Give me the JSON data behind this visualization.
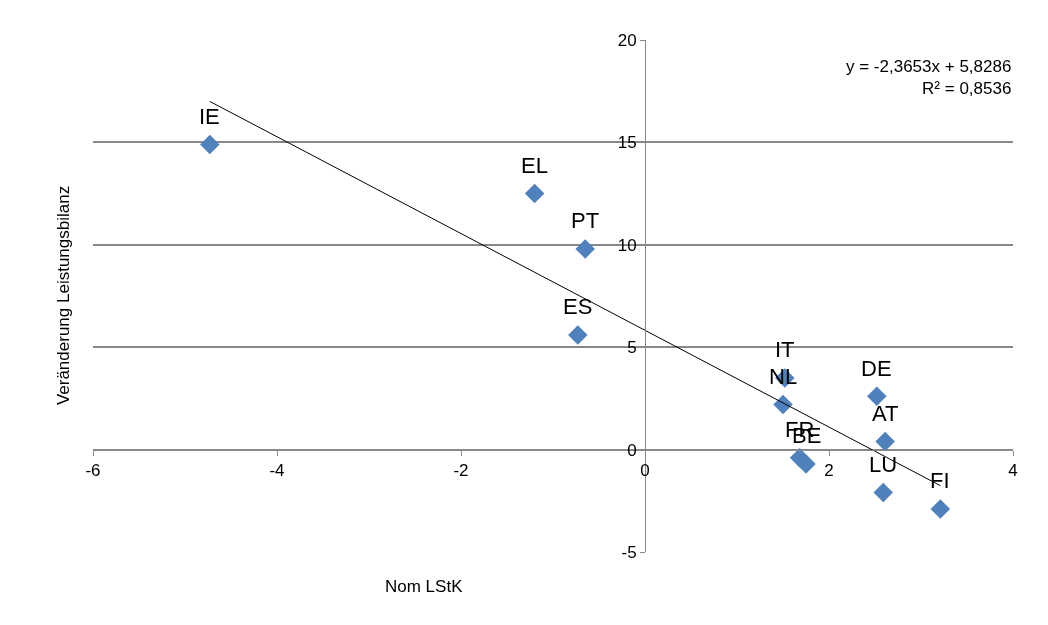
{
  "chart_data": {
    "type": "scatter",
    "xlabel": "Nom LStK",
    "ylabel": "Veränderung Leistungsbilanz",
    "xlim": [
      -6,
      4
    ],
    "xticks": [
      -6,
      -4,
      -2,
      0,
      2,
      4
    ],
    "ylim": [
      -5,
      20
    ],
    "yticks": [
      -5,
      0,
      5,
      10,
      15,
      20
    ],
    "grid": "y",
    "marker": "diamond",
    "legend": false,
    "series": [
      {
        "color": "#4f81bd",
        "x": [
          -4.73,
          -1.2,
          -0.65,
          -0.73,
          1.52,
          1.5,
          1.68,
          1.75,
          2.52,
          2.61,
          2.59,
          3.21
        ],
        "values": [
          14.9,
          12.5,
          9.8,
          5.6,
          3.5,
          2.2,
          -0.4,
          -0.7,
          2.6,
          0.4,
          -2.1,
          -2.9
        ]
      },
      {
        "type": "line",
        "marker": "none",
        "color": "#000000",
        "x": [
          -4.73,
          3.21
        ],
        "values": [
          17.0,
          -1.76
        ]
      }
    ],
    "annotations": [
      {
        "text": "IE",
        "x": -4.73,
        "y": 14.9
      },
      {
        "text": "EL",
        "x": -1.2,
        "y": 12.5
      },
      {
        "text": "PT",
        "x": -0.65,
        "y": 9.8
      },
      {
        "text": "ES",
        "x": -0.73,
        "y": 5.6
      },
      {
        "text": "IT",
        "x": 1.52,
        "y": 3.5
      },
      {
        "text": "NL",
        "x": 1.5,
        "y": 2.2
      },
      {
        "text": "FR",
        "x": 1.68,
        "y": -0.4
      },
      {
        "text": "BE",
        "x": 1.75,
        "y": -0.7
      },
      {
        "text": "DE",
        "x": 2.52,
        "y": 2.6
      },
      {
        "text": "AT",
        "x": 2.61,
        "y": 0.4
      },
      {
        "text": "LU",
        "x": 2.59,
        "y": -2.1
      },
      {
        "text": "FI",
        "x": 3.21,
        "y": -2.9
      },
      "y = -2,3653x + 5,8286\nR² = 0,8536"
    ]
  }
}
